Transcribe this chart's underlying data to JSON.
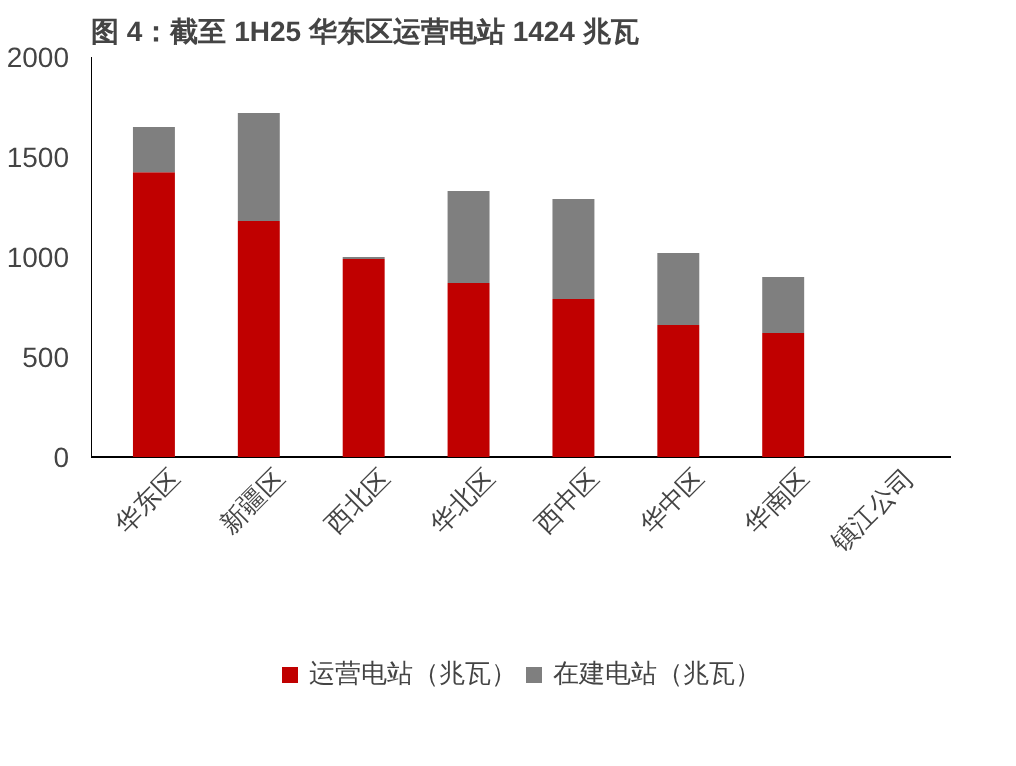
{
  "chart_data": {
    "type": "bar",
    "title": "图 4：截至 1H25 华东区运营电站 1424 兆瓦",
    "stacked": true,
    "categories": [
      "华东区",
      "新疆区",
      "西北区",
      "华北区",
      "西中区",
      "华中区",
      "华南区",
      "镇江公司"
    ],
    "series": [
      {
        "name": "运营电站（兆瓦）",
        "color": "#c00000",
        "values": [
          1424,
          1180,
          990,
          870,
          790,
          660,
          620,
          0
        ]
      },
      {
        "name": "在建电站（兆瓦）",
        "color": "#7f7f7f",
        "values": [
          226,
          540,
          10,
          460,
          500,
          360,
          280,
          0
        ]
      }
    ],
    "ylim": [
      0,
      2000
    ],
    "yticks": [
      0,
      500,
      1000,
      1500,
      2000
    ],
    "grid": false,
    "legend": "bottom"
  }
}
